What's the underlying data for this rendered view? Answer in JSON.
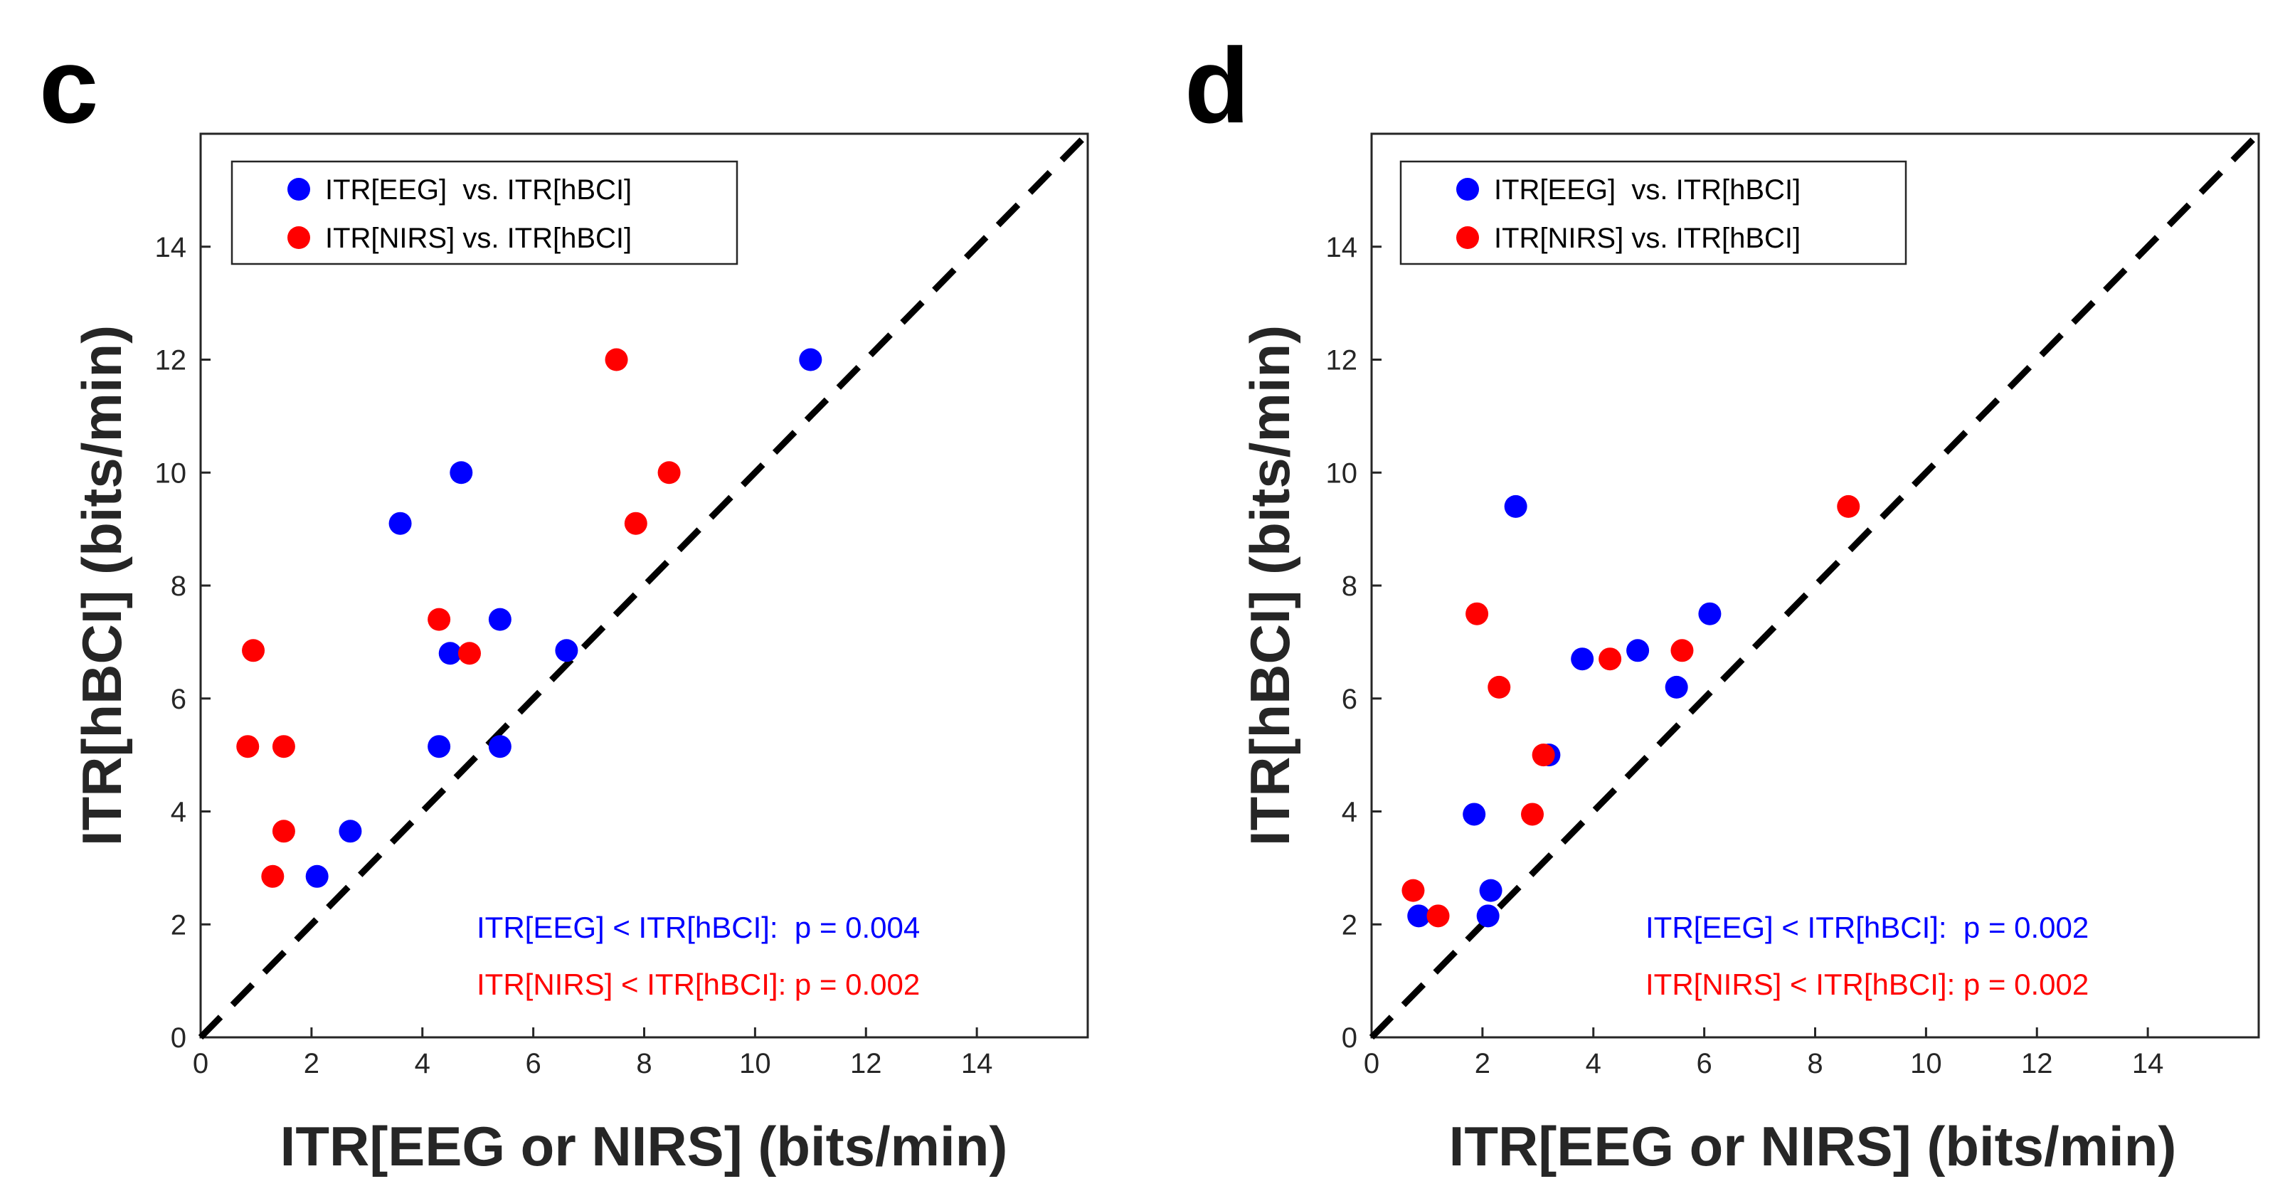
{
  "chart_data": [
    {
      "type": "scatter",
      "panel_label": "c",
      "xlabel": "ITR[EEG or NIRS] (bits/min)",
      "ylabel": "ITR[hBCI] (bits/min)",
      "xlim": [
        0,
        16
      ],
      "ylim": [
        0,
        16
      ],
      "xticks": [
        0,
        2,
        4,
        6,
        8,
        10,
        12,
        14
      ],
      "yticks": [
        0,
        2,
        4,
        6,
        8,
        10,
        12,
        14
      ],
      "diagonal": "y = x (dashed black)",
      "legend_position": "top-left",
      "series": [
        {
          "name": "ITR[EEG]  vs. ITR[hBCI]",
          "color": "#0000ff",
          "points": [
            [
              2.1,
              2.85
            ],
            [
              2.7,
              3.65
            ],
            [
              4.3,
              5.15
            ],
            [
              5.4,
              5.15
            ],
            [
              4.5,
              6.8
            ],
            [
              5.4,
              7.4
            ],
            [
              6.6,
              6.85
            ],
            [
              3.6,
              9.1
            ],
            [
              4.7,
              10.0
            ],
            [
              11.0,
              12.0
            ]
          ]
        },
        {
          "name": "ITR[NIRS] vs. ITR[hBCI]",
          "color": "#ff0000",
          "points": [
            [
              0.85,
              5.15
            ],
            [
              0.95,
              6.85
            ],
            [
              1.3,
              2.85
            ],
            [
              1.5,
              3.65
            ],
            [
              1.5,
              5.15
            ],
            [
              4.3,
              7.4
            ],
            [
              4.85,
              6.8
            ],
            [
              7.5,
              12.0
            ],
            [
              7.85,
              9.1
            ],
            [
              8.45,
              10.0
            ]
          ]
        }
      ],
      "annotations": [
        {
          "text": "ITR[EEG] < ITR[hBCI]:  p = 0.004",
          "color": "#0000ff"
        },
        {
          "text": "ITR[NIRS] < ITR[hBCI]: p = 0.002",
          "color": "#ff0000"
        }
      ]
    },
    {
      "type": "scatter",
      "panel_label": "d",
      "xlabel": "ITR[EEG or NIRS] (bits/min)",
      "ylabel": "ITR[hBCI] (bits/min)",
      "xlim": [
        0,
        16
      ],
      "ylim": [
        0,
        16
      ],
      "xticks": [
        0,
        2,
        4,
        6,
        8,
        10,
        12,
        14
      ],
      "yticks": [
        0,
        2,
        4,
        6,
        8,
        10,
        12,
        14
      ],
      "diagonal": "y = x (dashed black)",
      "legend_position": "top-left",
      "series": [
        {
          "name": "ITR[EEG]  vs. ITR[hBCI]",
          "color": "#0000ff",
          "points": [
            [
              0.85,
              2.15
            ],
            [
              2.1,
              2.15
            ],
            [
              2.15,
              2.6
            ],
            [
              1.85,
              3.95
            ],
            [
              3.2,
              5.0
            ],
            [
              3.8,
              6.7
            ],
            [
              4.8,
              6.85
            ],
            [
              5.5,
              6.2
            ],
            [
              6.1,
              7.5
            ],
            [
              2.6,
              9.4
            ]
          ]
        },
        {
          "name": "ITR[NIRS] vs. ITR[hBCI]",
          "color": "#ff0000",
          "points": [
            [
              0.75,
              2.6
            ],
            [
              1.2,
              2.15
            ],
            [
              2.3,
              6.2
            ],
            [
              1.9,
              7.5
            ],
            [
              2.9,
              3.95
            ],
            [
              3.1,
              5.0
            ],
            [
              4.3,
              6.7
            ],
            [
              5.6,
              6.85
            ],
            [
              8.6,
              9.4
            ]
          ]
        }
      ],
      "annotations": [
        {
          "text": "ITR[EEG] < ITR[hBCI]:  p = 0.002",
          "color": "#0000ff"
        },
        {
          "text": "ITR[NIRS] < ITR[hBCI]: p = 0.002",
          "color": "#ff0000"
        }
      ]
    }
  ]
}
